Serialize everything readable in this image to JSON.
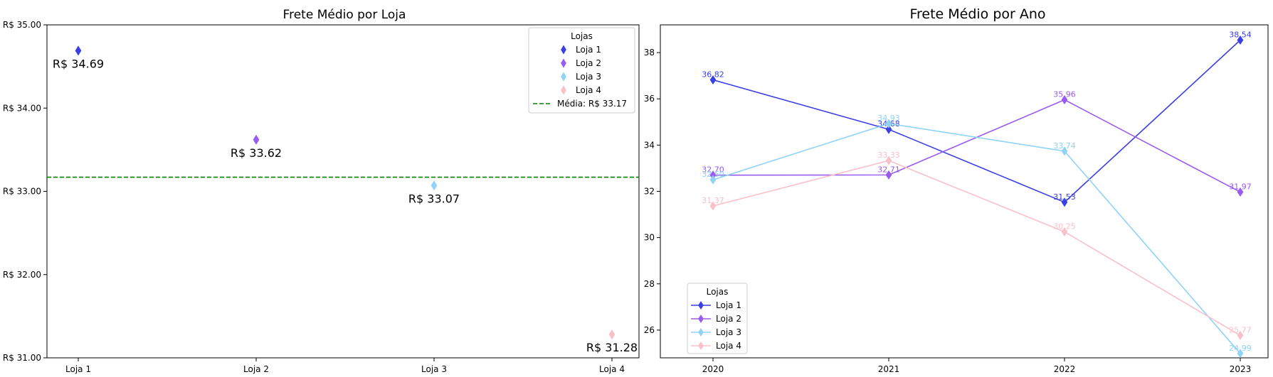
{
  "chart_data": [
    {
      "type": "scatter",
      "title": "Frete Médio por Loja",
      "categories": [
        "Loja 1",
        "Loja 2",
        "Loja 3",
        "Loja 4"
      ],
      "values": [
        34.69,
        33.62,
        33.07,
        31.28
      ],
      "value_labels": [
        "R$ 34.69",
        "R$ 33.62",
        "R$ 33.07",
        "R$ 31.28"
      ],
      "colors": [
        "#3b3fe6",
        "#9a5cf0",
        "#8fd3f8",
        "#f9c0ca"
      ],
      "ylim": [
        31.0,
        35.0
      ],
      "yticks": [
        31.0,
        32.0,
        33.0,
        34.0,
        35.0
      ],
      "ytick_labels": [
        "R$ 31.00",
        "R$ 32.00",
        "R$ 33.00",
        "R$ 34.00",
        "R$ 35.00"
      ],
      "mean_value": 33.17,
      "mean_color": "#008000",
      "legend": {
        "title": "Lojas",
        "placement": "top-right",
        "entries": [
          "Loja 1",
          "Loja 2",
          "Loja 3",
          "Loja 4"
        ],
        "mean_entry": "Média: R$ 33.17"
      },
      "grid": false
    },
    {
      "type": "line",
      "title": "Frete Médio por Ano",
      "x": [
        2020,
        2021,
        2022,
        2023
      ],
      "xtick_labels": [
        "2020",
        "2021",
        "2022",
        "2023"
      ],
      "ylim": [
        24.8,
        39.2
      ],
      "yticks": [
        26,
        28,
        30,
        32,
        34,
        36,
        38
      ],
      "ytick_labels": [
        "26",
        "28",
        "30",
        "32",
        "34",
        "36",
        "38"
      ],
      "series": [
        {
          "name": "Loja 1",
          "color": "#3b3fe6",
          "values": [
            36.82,
            34.68,
            31.53,
            38.54
          ],
          "labels": [
            "36.82",
            "34.68",
            "31.53",
            "38.54"
          ]
        },
        {
          "name": "Loja 2",
          "color": "#9a5cf0",
          "values": [
            32.7,
            32.71,
            35.96,
            31.97
          ],
          "labels": [
            "32.70",
            "32.71",
            "35.96",
            "31.97"
          ]
        },
        {
          "name": "Loja 3",
          "color": "#8fd3f8",
          "values": [
            32.5,
            34.93,
            33.74,
            24.99
          ],
          "labels": [
            "32.50",
            "34.93",
            "33.74",
            "24.99"
          ]
        },
        {
          "name": "Loja 4",
          "color": "#f9c0ca",
          "values": [
            31.37,
            33.33,
            30.25,
            25.77
          ],
          "labels": [
            "31.37",
            "33.33",
            "30.25",
            "25.77"
          ]
        }
      ],
      "legend": {
        "title": "Lojas",
        "placement": "bottom-left"
      },
      "grid": false
    }
  ]
}
